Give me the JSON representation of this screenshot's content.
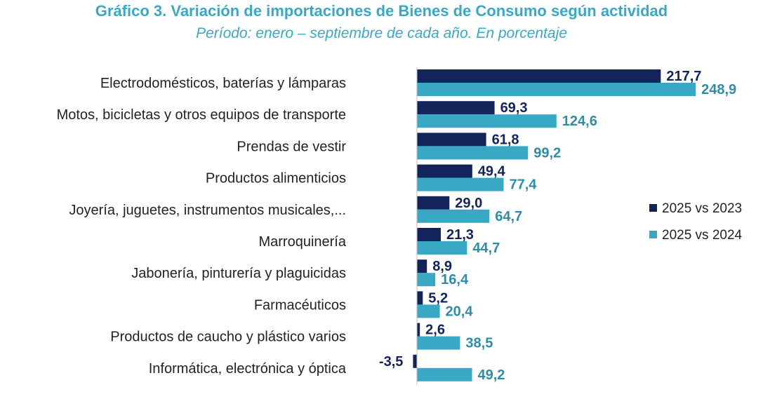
{
  "chart_data": {
    "type": "bar",
    "orientation": "horizontal",
    "title": "Gráfico 3. Variación de importaciones de Bienes de Consumo según actividad",
    "subtitle": "Período: enero – septiembre de cada año. En porcentaje",
    "categories": [
      "Electrodomésticos, baterías y lámparas",
      "Motos, bicicletas y otros equipos de transporte",
      "Prendas de vestir",
      "Productos alimenticios",
      "Joyería, juguetes, instrumentos musicales,...",
      "Marroquinería",
      "Jabonería, pinturería y plaguicidas",
      "Farmacéuticos",
      "Productos de caucho y plástico varios",
      "Informática, electrónica y óptica"
    ],
    "series": [
      {
        "name": "2025 vs 2023",
        "color": "#13245a",
        "values": [
          217.7,
          69.3,
          61.8,
          49.4,
          29.0,
          21.3,
          8.9,
          5.2,
          2.6,
          -3.5
        ],
        "labels": [
          "217,7",
          "69,3",
          "61,8",
          "49,4",
          "29,0",
          "21,3",
          "8,9",
          "5,2",
          "2,6",
          "-3,5"
        ]
      },
      {
        "name": "2025 vs 2024",
        "color": "#38a8c4",
        "label_color": "#2f8ca6",
        "values": [
          248.9,
          124.6,
          99.2,
          77.4,
          64.7,
          44.7,
          16.4,
          20.4,
          38.5,
          49.2
        ],
        "labels": [
          "248,9",
          "124,6",
          "99,2",
          "77,4",
          "64,7",
          "44,7",
          "16,4",
          "20,4",
          "38,5",
          "49,2"
        ]
      }
    ],
    "xlim": [
      -3.5,
      248.9
    ],
    "grid": false,
    "legend_position": "right"
  }
}
